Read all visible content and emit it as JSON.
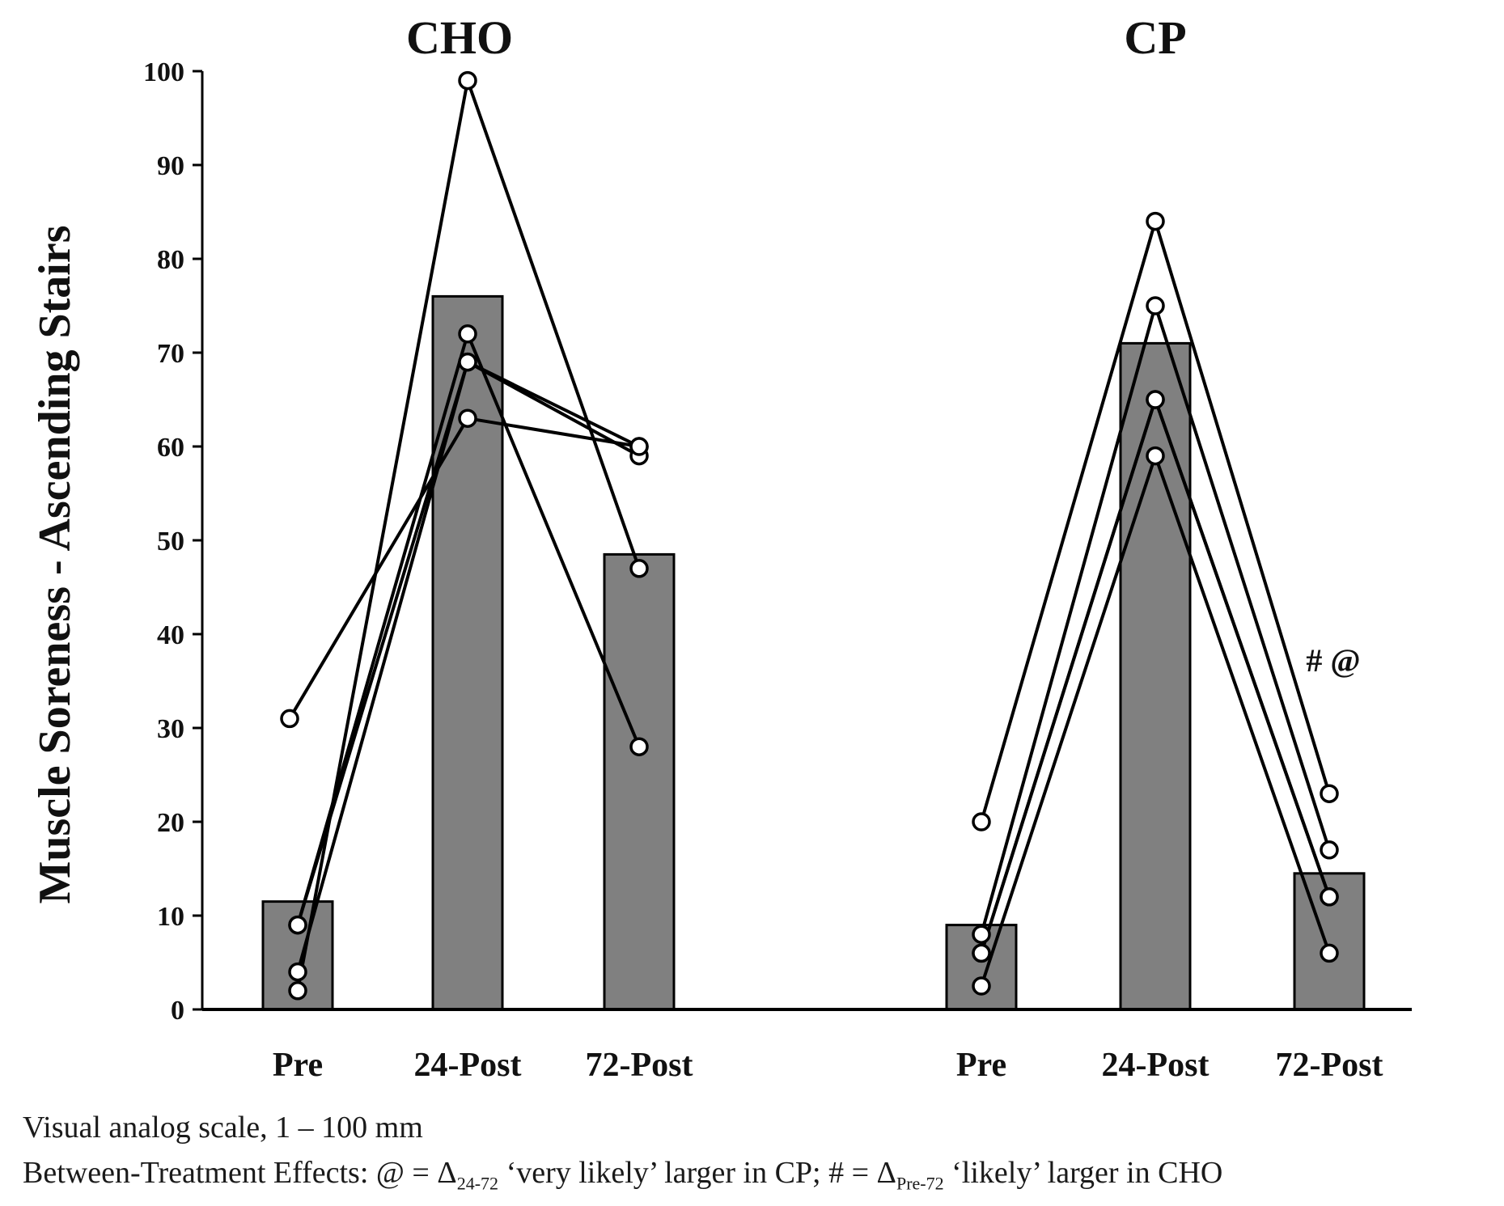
{
  "chart_data": {
    "type": "bar",
    "ylabel": "Muscle Soreness - Ascending Stairs",
    "ylim": [
      0,
      100
    ],
    "yticks": [
      0,
      10,
      20,
      30,
      40,
      50,
      60,
      70,
      80,
      90,
      100
    ],
    "bar_color": "#808080",
    "groups": [
      {
        "title": "CHO",
        "categories": [
          "Pre",
          "24-Post",
          "72-Post"
        ],
        "means": [
          11.5,
          76,
          48.5
        ],
        "subjects": [
          [
            31,
            63,
            60
          ],
          [
            9,
            72,
            28
          ],
          [
            4,
            69,
            59
          ],
          [
            2,
            99,
            47
          ],
          [
            9,
            69,
            60
          ]
        ],
        "annotation": ""
      },
      {
        "title": "CP",
        "categories": [
          "Pre",
          "24-Post",
          "72-Post"
        ],
        "means": [
          9,
          71,
          14.5
        ],
        "subjects": [
          [
            20,
            84,
            23
          ],
          [
            8,
            75,
            17
          ],
          [
            6,
            65,
            12
          ],
          [
            2.5,
            59,
            6
          ],
          [
            6,
            65,
            12
          ]
        ],
        "annotation": "# @"
      }
    ]
  },
  "notes": {
    "line1": "Visual analog scale, 1 – 100 mm",
    "line2_a": "Between-Treatment Effects: @ = Δ",
    "line2_sub1": "24-72",
    "line2_b": " ‘very likely’ larger in CP; # = Δ",
    "line2_sub2": "Pre-72",
    "line2_c": " ‘likely’ larger in CHO"
  }
}
